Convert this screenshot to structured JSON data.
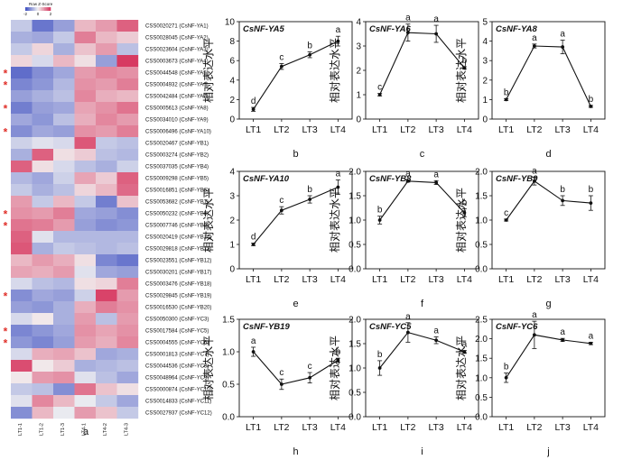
{
  "figure": {
    "heatmap_panel_letter": "a",
    "star_glyph": "*"
  },
  "colors": {
    "low": "#3b4cc0",
    "mid": "#f2f2f2",
    "high": "#d6305a",
    "star": "#e0302a",
    "line": "#111111"
  },
  "chart_data": [
    {
      "type": "heatmap",
      "panel": "a",
      "legend_title": "Row Z-Score",
      "legend_ticks": [
        "-2",
        "0",
        "2"
      ],
      "value_range": [
        -2,
        2
      ],
      "columns": [
        "LT1-1",
        "LT1-2",
        "LT1-3",
        "LT4-1",
        "LT4-2",
        "LT4-3"
      ],
      "rows": [
        {
          "label": "CSS0020271 (CsNF-YA1)",
          "star": false,
          "values": [
            -0.5,
            -1.5,
            -1.0,
            0.6,
            0.9,
            1.5
          ]
        },
        {
          "label": "CSS0028045 (CsNF-YA2)",
          "star": false,
          "values": [
            -0.8,
            -0.9,
            -0.5,
            1.2,
            0.6,
            0.4
          ]
        },
        {
          "label": "CSS0023604 (CsNF-YA3)",
          "star": false,
          "values": [
            -0.5,
            0.3,
            -0.8,
            0.5,
            0.9,
            -0.6
          ]
        },
        {
          "label": "CSS0003673 (CsNF-YA4)",
          "star": false,
          "values": [
            0.3,
            -0.3,
            0.6,
            0.2,
            -1.0,
            1.9
          ]
        },
        {
          "label": "CSS0044548 (CsNF-YA5)",
          "star": true,
          "values": [
            -1.6,
            -1.2,
            -0.9,
            0.9,
            1.1,
            1.0
          ]
        },
        {
          "label": "CSS0004932 (CsNF-YA6)",
          "star": true,
          "values": [
            -1.3,
            -1.1,
            -0.7,
            1.0,
            0.9,
            1.2
          ]
        },
        {
          "label": "CSS0042484 (CsNF-YA7)",
          "star": false,
          "values": [
            -1.0,
            -0.8,
            -0.6,
            1.1,
            0.7,
            0.6
          ]
        },
        {
          "label": "CSS0005613 (CsNF-YA8)",
          "star": true,
          "values": [
            -1.4,
            -1.0,
            -0.9,
            0.8,
            1.0,
            1.3
          ]
        },
        {
          "label": "CSS0034010 (CsNF-YA9)",
          "star": false,
          "values": [
            -0.9,
            -1.1,
            -0.6,
            0.7,
            1.1,
            0.9
          ]
        },
        {
          "label": "CSS0006496 (CsNF-YA10)",
          "star": true,
          "values": [
            -1.2,
            -0.9,
            -1.0,
            1.0,
            0.9,
            1.2
          ]
        },
        {
          "label": "CSS0020467 (CsNF-YB1)",
          "star": false,
          "values": [
            -0.4,
            -0.2,
            -0.3,
            1.6,
            -0.5,
            -0.6
          ]
        },
        {
          "label": "CSS0003274 (CsNF-YB2)",
          "star": false,
          "values": [
            -0.8,
            1.5,
            0.2,
            0.4,
            -0.6,
            -0.7
          ]
        },
        {
          "label": "CSS0037035 (CsNF-YB4)",
          "star": false,
          "values": [
            1.5,
            0.2,
            -0.3,
            -0.6,
            -0.8,
            -0.4
          ]
        },
        {
          "label": "CSS0009298 (CsNF-YB5)",
          "star": false,
          "values": [
            -0.7,
            -0.9,
            -0.4,
            0.8,
            0.4,
            1.5
          ]
        },
        {
          "label": "CSS0016851 (CsNF-YB6)",
          "star": false,
          "values": [
            -0.5,
            -0.8,
            -0.6,
            0.3,
            0.6,
            1.4
          ]
        },
        {
          "label": "CSS0053682 (CsNF-YB7)",
          "star": false,
          "values": [
            0.9,
            -0.5,
            0.6,
            -0.5,
            -1.4,
            0.5
          ]
        },
        {
          "label": "CSS0050232 (CsNF-YB8)",
          "star": true,
          "values": [
            1.0,
            0.9,
            1.2,
            -0.9,
            -1.0,
            -1.2
          ]
        },
        {
          "label": "CSS0007746 (CsNF-YB9)",
          "star": true,
          "values": [
            1.3,
            1.2,
            0.9,
            -1.0,
            -1.2,
            -1.1
          ]
        },
        {
          "label": "CSS0020419 (CsNF-YB10)",
          "star": false,
          "values": [
            1.5,
            -0.2,
            -0.7,
            -0.7,
            -0.7,
            -0.7
          ]
        },
        {
          "label": "CSS0029818 (CsNF-YB11)",
          "star": false,
          "values": [
            1.6,
            -0.8,
            -0.5,
            -0.6,
            -0.7,
            -0.6
          ]
        },
        {
          "label": "CSS0023551 (CsNF-YB12)",
          "star": false,
          "values": [
            0.6,
            0.9,
            0.7,
            0.2,
            -1.3,
            -1.5
          ]
        },
        {
          "label": "CSS0030201 (CsNF-YB17)",
          "star": false,
          "values": [
            0.8,
            0.7,
            0.9,
            -0.2,
            -0.9,
            -1.0
          ]
        },
        {
          "label": "CSS0003476 (CsNF-YB18)",
          "star": false,
          "values": [
            -0.3,
            -0.6,
            -0.7,
            0.2,
            0.3,
            1.2
          ]
        },
        {
          "label": "CSS0029845 (CsNF-YB19)",
          "star": true,
          "values": [
            -1.2,
            -0.9,
            -1.0,
            -0.4,
            1.8,
            0.9
          ]
        },
        {
          "label": "CSS0016530 (CsNF-YB20)",
          "star": false,
          "values": [
            -1.0,
            -1.1,
            -0.8,
            0.7,
            1.2,
            1.0
          ]
        },
        {
          "label": "CSS0050300 (CsNF-YC3)",
          "star": false,
          "values": [
            -0.3,
            0.1,
            -0.8,
            0.9,
            -0.6,
            0.9
          ]
        },
        {
          "label": "CSS0017584 (CsNF-YC5)",
          "star": true,
          "values": [
            -1.3,
            -1.1,
            -0.9,
            1.0,
            0.8,
            1.0
          ]
        },
        {
          "label": "CSS0004555 (CsNF-YC6)",
          "star": true,
          "values": [
            -1.1,
            -1.3,
            -1.0,
            0.9,
            0.7,
            1.1
          ]
        },
        {
          "label": "CSS0001813 (CsNF-YC7)",
          "star": false,
          "values": [
            -0.3,
            0.7,
            0.8,
            0.5,
            -0.9,
            -0.8
          ]
        },
        {
          "label": "CSS0044536 (CsNF-YC8)",
          "star": false,
          "values": [
            1.7,
            0.1,
            0.4,
            -0.8,
            -0.7,
            -0.6
          ]
        },
        {
          "label": "CSS0048964 (CsNF-YC9)",
          "star": false,
          "values": [
            0.1,
            0.9,
            1.0,
            -0.2,
            -0.6,
            -0.9
          ]
        },
        {
          "label": "CSS0000874 (CsNF-YC10)",
          "star": false,
          "values": [
            -0.5,
            -0.6,
            -1.2,
            1.3,
            0.5,
            0.2
          ]
        },
        {
          "label": "CSS0014833 (CsNF-YC11)",
          "star": false,
          "values": [
            -0.2,
            1.1,
            0.6,
            -0.1,
            -0.5,
            -0.9
          ]
        },
        {
          "label": "CSS0027937 (CsNF-YC12)",
          "star": false,
          "values": [
            -1.2,
            0.6,
            -0.1,
            0.9,
            0.5,
            -0.5
          ]
        }
      ]
    },
    {
      "type": "line",
      "panel": "b",
      "title": "CsNF-YA5",
      "ylabel": "相对表达水平",
      "categories": [
        "LT1",
        "LT2",
        "LT3",
        "LT4"
      ],
      "values": [
        1.0,
        5.4,
        6.6,
        8.0
      ],
      "errors": [
        0.2,
        0.3,
        0.3,
        0.5
      ],
      "letters": [
        "d",
        "c",
        "b",
        "a"
      ],
      "ylim": [
        0,
        10
      ],
      "yticks": [
        0,
        2,
        4,
        6,
        8,
        10
      ],
      "tick_labels": [
        "0",
        "2",
        "4",
        "6",
        "8",
        "10"
      ]
    },
    {
      "type": "line",
      "panel": "c",
      "title": "CsNF-YA6",
      "ylabel": "相对表达水平",
      "categories": [
        "LT1",
        "LT2",
        "LT3",
        "LT4"
      ],
      "values": [
        1.0,
        3.55,
        3.5,
        2.1
      ],
      "errors": [
        0.05,
        0.35,
        0.35,
        0.05
      ],
      "letters": [
        "c",
        "a",
        "a",
        "b"
      ],
      "ylim": [
        0,
        4
      ],
      "yticks": [
        0,
        1,
        2,
        3,
        4
      ],
      "tick_labels": [
        "0",
        "1",
        "2",
        "3",
        "4"
      ]
    },
    {
      "type": "line",
      "panel": "d",
      "title": "CsNF-YA8",
      "ylabel": "相对表达水平",
      "categories": [
        "LT1",
        "LT2",
        "LT3",
        "LT4"
      ],
      "values": [
        1.0,
        3.75,
        3.7,
        0.65
      ],
      "errors": [
        0.05,
        0.1,
        0.35,
        0.05
      ],
      "letters": [
        "b",
        "a",
        "a",
        "b"
      ],
      "ylim": [
        0,
        5
      ],
      "yticks": [
        0,
        1,
        2,
        3,
        4,
        5
      ],
      "tick_labels": [
        "0",
        "1",
        "2",
        "3",
        "4",
        "5"
      ]
    },
    {
      "type": "line",
      "panel": "e",
      "title": "CsNF-YA10",
      "ylabel": "相对表达水平",
      "categories": [
        "LT1",
        "LT2",
        "LT3",
        "LT4"
      ],
      "values": [
        1.0,
        2.4,
        2.85,
        3.35
      ],
      "errors": [
        0.05,
        0.15,
        0.15,
        0.3
      ],
      "letters": [
        "d",
        "c",
        "b",
        "a"
      ],
      "ylim": [
        0,
        4
      ],
      "yticks": [
        0,
        1,
        2,
        3,
        4
      ],
      "tick_labels": [
        "0",
        "1",
        "2",
        "3",
        "4"
      ]
    },
    {
      "type": "line",
      "panel": "f",
      "title": "CsNF-YB8",
      "ylabel": "相对表达水平",
      "categories": [
        "LT1",
        "LT2",
        "LT3",
        "LT4"
      ],
      "values": [
        1.0,
        1.8,
        1.77,
        1.15
      ],
      "errors": [
        0.08,
        0.02,
        0.04,
        0.08
      ],
      "letters": [
        "b",
        "a",
        "a",
        "b"
      ],
      "ylim": [
        0,
        2
      ],
      "yticks": [
        0,
        0.5,
        1,
        1.5,
        2
      ],
      "tick_labels": [
        "0.0",
        "0.5",
        "1.0",
        "1.5",
        "2.0"
      ]
    },
    {
      "type": "line",
      "panel": "g",
      "title": "CsNF-YB9",
      "ylabel": "相对表达水平",
      "categories": [
        "LT1",
        "LT2",
        "LT3",
        "LT4"
      ],
      "values": [
        1.0,
        1.8,
        1.4,
        1.35
      ],
      "errors": [
        0.02,
        0.08,
        0.1,
        0.15
      ],
      "letters": [
        "c",
        "a",
        "b",
        "b"
      ],
      "ylim": [
        0,
        2
      ],
      "yticks": [
        0,
        0.5,
        1,
        1.5,
        2
      ],
      "tick_labels": [
        "0.0",
        "0.5",
        "1.0",
        "1.5",
        "2.0"
      ]
    },
    {
      "type": "line",
      "panel": "h",
      "title": "CsNF-YB19",
      "ylabel": "相对表达水平",
      "categories": [
        "LT1",
        "LT2",
        "LT3",
        "LT4"
      ],
      "values": [
        1.0,
        0.5,
        0.6,
        0.87
      ],
      "errors": [
        0.07,
        0.08,
        0.08,
        0.03
      ],
      "letters": [
        "a",
        "c",
        "c",
        "b"
      ],
      "ylim": [
        0,
        1.5
      ],
      "yticks": [
        0,
        0.5,
        1,
        1.5
      ],
      "tick_labels": [
        "0.0",
        "0.5",
        "1.0",
        "1.5"
      ]
    },
    {
      "type": "line",
      "panel": "i",
      "title": "CsNF-YC5",
      "ylabel": "相对表达水平",
      "categories": [
        "LT1",
        "LT2",
        "LT3",
        "LT4"
      ],
      "values": [
        1.0,
        1.73,
        1.57,
        1.33
      ],
      "errors": [
        0.15,
        0.2,
        0.07,
        0.03
      ],
      "letters": [
        "b",
        "a",
        "a",
        "a"
      ],
      "ylim": [
        0,
        2
      ],
      "yticks": [
        0,
        0.5,
        1,
        1.5,
        2
      ],
      "tick_labels": [
        "0.0",
        "0.5",
        "1.0",
        "1.5",
        "2.0"
      ]
    },
    {
      "type": "line",
      "panel": "j",
      "title": "CsNF-YC6",
      "ylabel": "相对表达水平",
      "categories": [
        "LT1",
        "LT2",
        "LT3",
        "LT4"
      ],
      "values": [
        1.0,
        2.1,
        1.97,
        1.88
      ],
      "errors": [
        0.12,
        0.35,
        0.04,
        0.03
      ],
      "letters": [
        "b",
        "a",
        "a",
        "a"
      ],
      "ylim": [
        0,
        2.5
      ],
      "yticks": [
        0,
        0.5,
        1,
        1.5,
        2,
        2.5
      ],
      "tick_labels": [
        "0.0",
        "0.5",
        "1.0",
        "1.5",
        "2.0",
        "2.5"
      ]
    }
  ]
}
